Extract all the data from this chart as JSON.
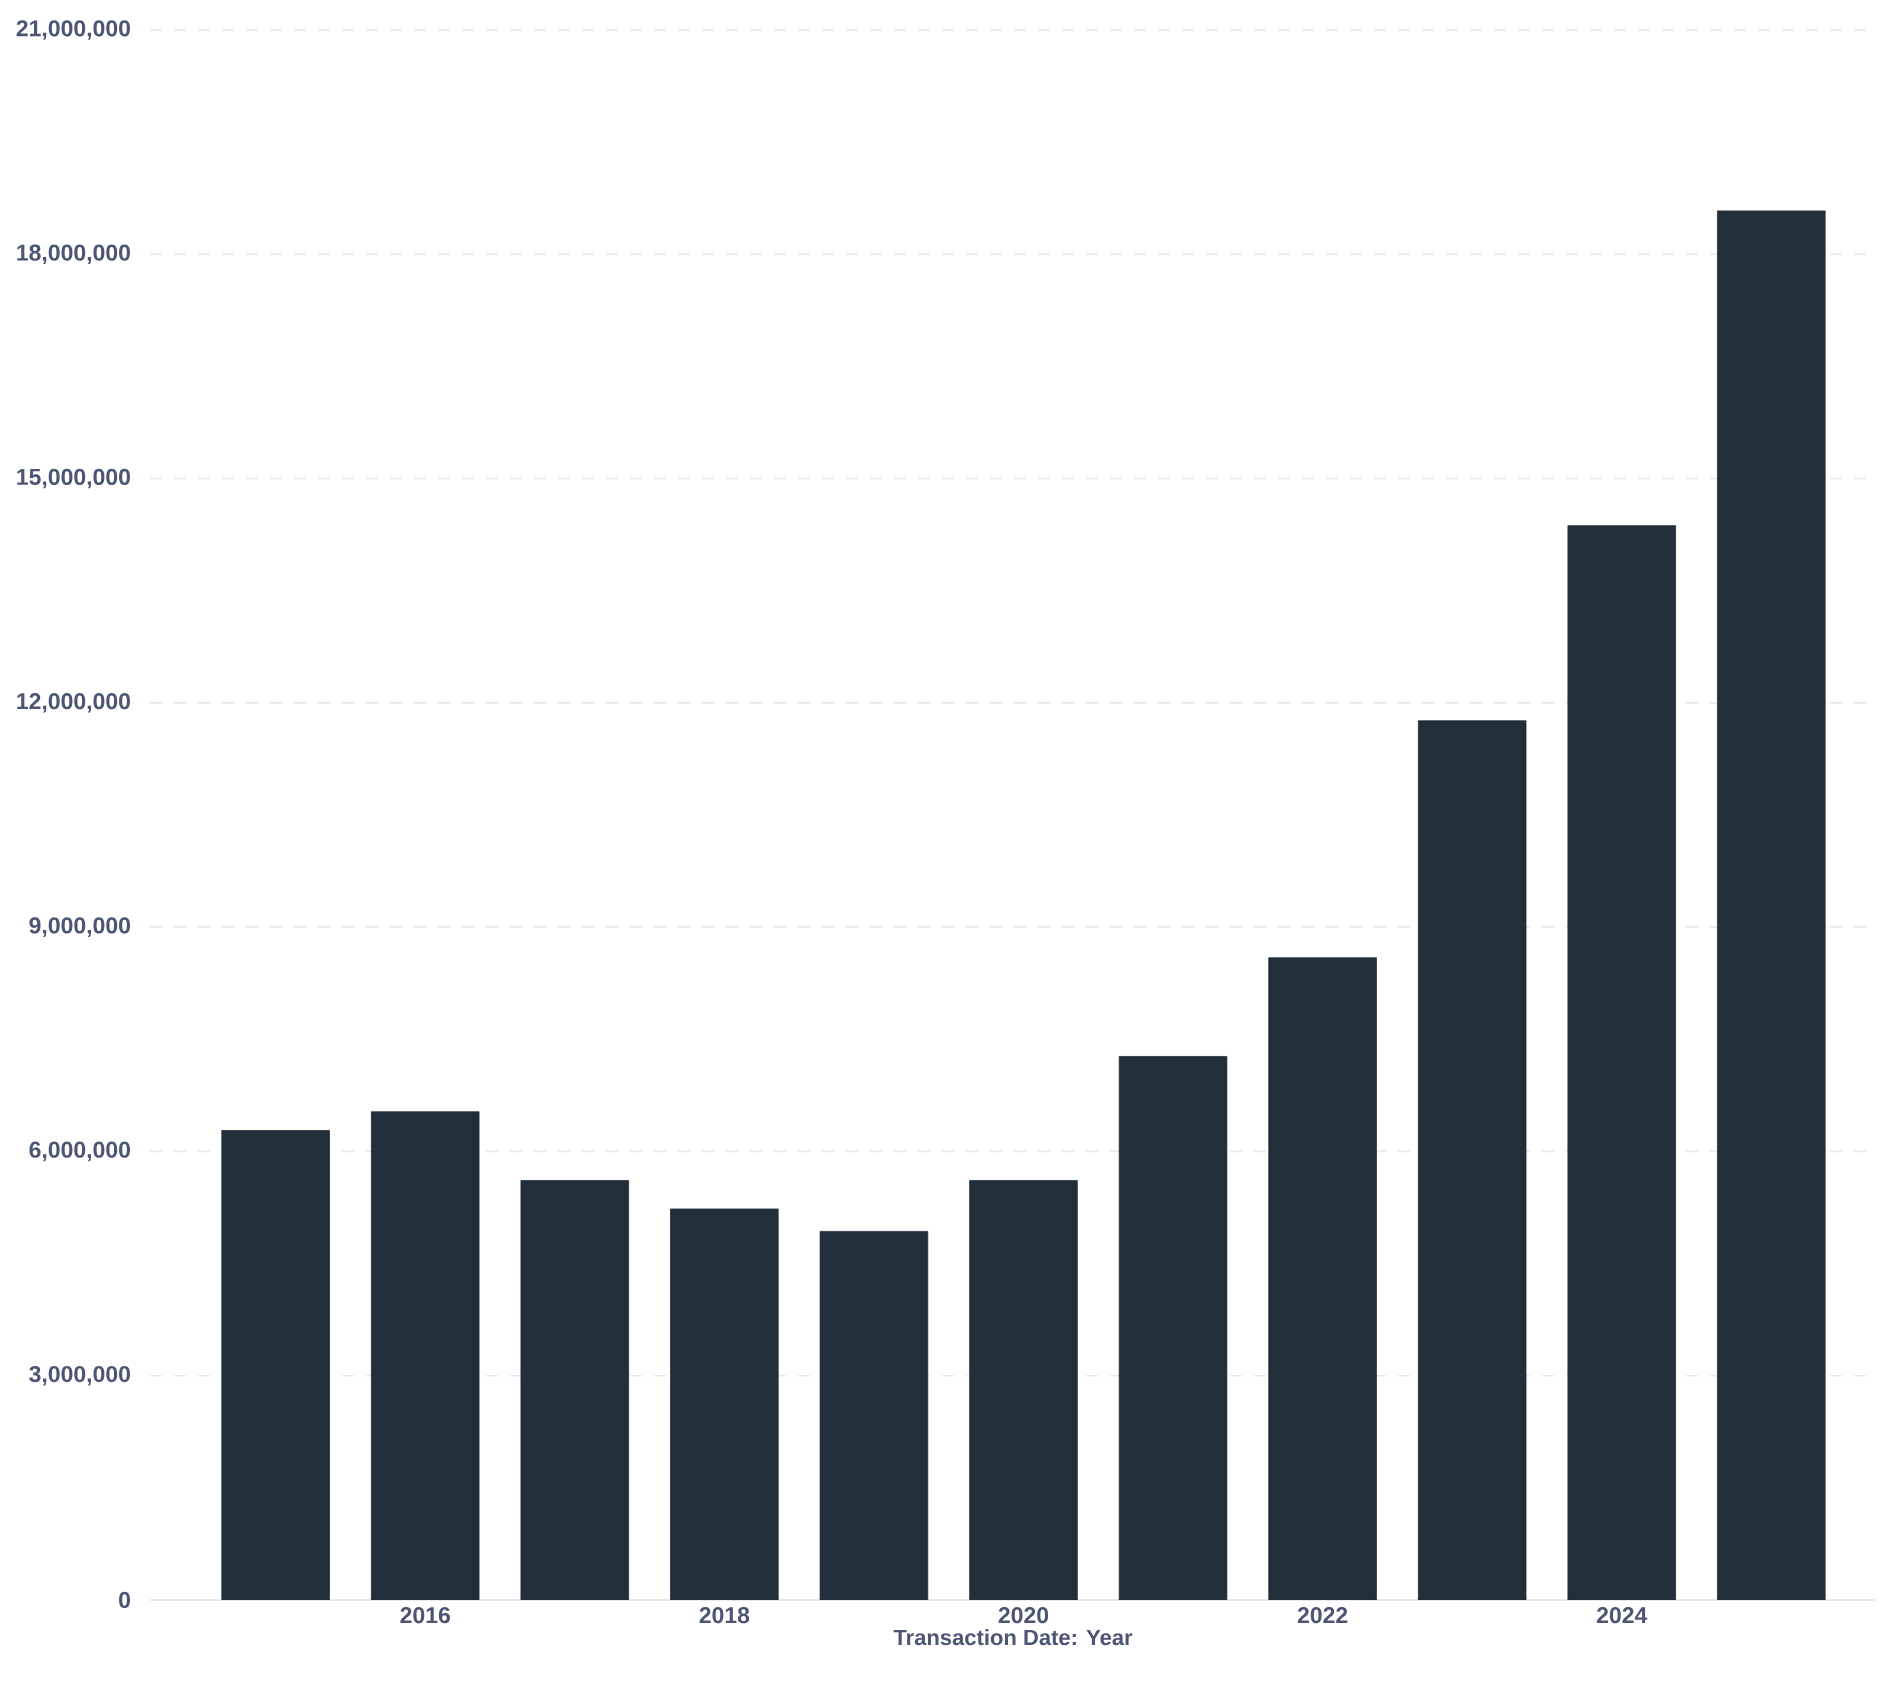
{
  "chart_data": {
    "type": "bar",
    "xlabel": "Transaction Date: Year",
    "x": [
      2015,
      2016,
      2017,
      2018,
      2019,
      2020,
      2021,
      2022,
      2023,
      2024,
      2025
    ],
    "values": [
      6280000,
      6530000,
      5610000,
      5230000,
      4930000,
      5610000,
      7270000,
      8590000,
      11760000,
      14370000,
      18580000
    ],
    "color": "#222f3b",
    "xlim": [
      2014.16,
      2025.7
    ],
    "xticks": [
      2016,
      2018,
      2020,
      2022,
      2024
    ],
    "ylim": [
      0,
      21000000
    ],
    "yticks": [
      0,
      {
        "value": 3000000,
        "label": "3,000,000"
      },
      {
        "value": 6000000,
        "label": "6,000,000"
      },
      {
        "value": 9000000,
        "label": "9,000,000"
      },
      {
        "value": 12000000,
        "label": "12,000,000"
      },
      {
        "value": 15000000,
        "label": "15,000,000"
      },
      {
        "value": 18000000,
        "label": "18,000,000"
      },
      {
        "value": 21000000,
        "label": "21,000,000"
      }
    ],
    "grid": "y"
  }
}
